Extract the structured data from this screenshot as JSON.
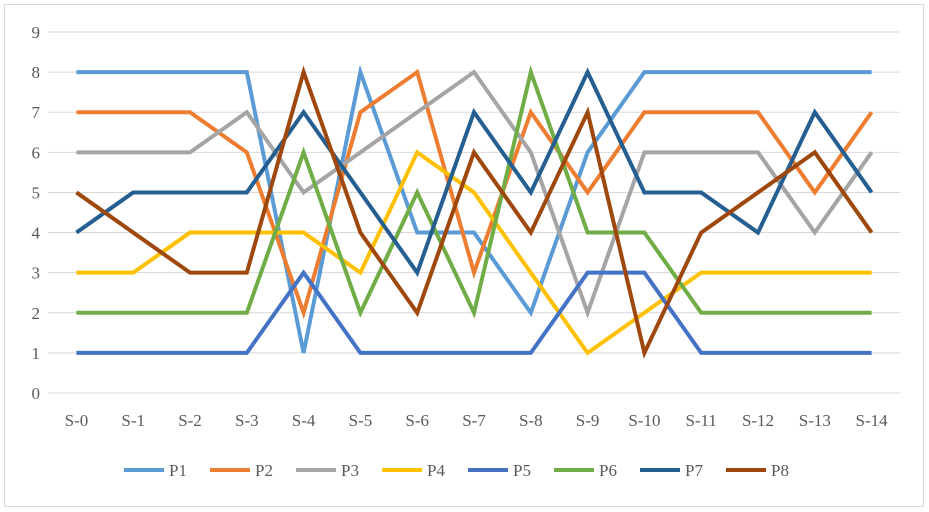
{
  "chart_data": {
    "type": "line",
    "title": "",
    "xlabel": "",
    "ylabel": "",
    "ylim": [
      0,
      9
    ],
    "y_ticks": [
      "0",
      "1",
      "2",
      "3",
      "4",
      "5",
      "6",
      "7",
      "8",
      "9"
    ],
    "grid": "horizontal",
    "legend_position": "bottom",
    "categories": [
      "S-0",
      "S-1",
      "S-2",
      "S-3",
      "S-4",
      "S-5",
      "S-6",
      "S-7",
      "S-8",
      "S-9",
      "S-10",
      "S-11",
      "S-12",
      "S-13",
      "S-14"
    ],
    "series": [
      {
        "name": "P1",
        "color": "#5b9bd5",
        "values": [
          8,
          8,
          8,
          8,
          1,
          8,
          4,
          4,
          2,
          6,
          8,
          8,
          8,
          8,
          8
        ]
      },
      {
        "name": "P2",
        "color": "#ed7d31",
        "values": [
          7,
          7,
          7,
          6,
          2,
          7,
          8,
          3,
          7,
          5,
          7,
          7,
          7,
          5,
          7
        ]
      },
      {
        "name": "P3",
        "color": "#a5a5a5",
        "values": [
          6,
          6,
          6,
          7,
          5,
          6,
          7,
          8,
          6,
          2,
          6,
          6,
          6,
          4,
          6
        ]
      },
      {
        "name": "P4",
        "color": "#ffc000",
        "values": [
          3,
          3,
          4,
          4,
          4,
          3,
          6,
          5,
          3,
          1,
          2,
          3,
          3,
          3,
          3
        ]
      },
      {
        "name": "P5",
        "color": "#4472c4",
        "values": [
          1,
          1,
          1,
          1,
          3,
          1,
          1,
          1,
          1,
          3,
          3,
          1,
          1,
          1,
          1
        ]
      },
      {
        "name": "P6",
        "color": "#70ad47",
        "values": [
          2,
          2,
          2,
          2,
          6,
          2,
          5,
          2,
          8,
          4,
          4,
          2,
          2,
          2,
          2
        ]
      },
      {
        "name": "P7",
        "color": "#255e91",
        "values": [
          4,
          5,
          5,
          5,
          7,
          5,
          3,
          7,
          5,
          8,
          5,
          5,
          4,
          7,
          5
        ]
      },
      {
        "name": "P8",
        "color": "#9e480e",
        "values": [
          5,
          4,
          3,
          3,
          8,
          4,
          2,
          6,
          4,
          7,
          1,
          4,
          5,
          6,
          4
        ]
      }
    ]
  }
}
